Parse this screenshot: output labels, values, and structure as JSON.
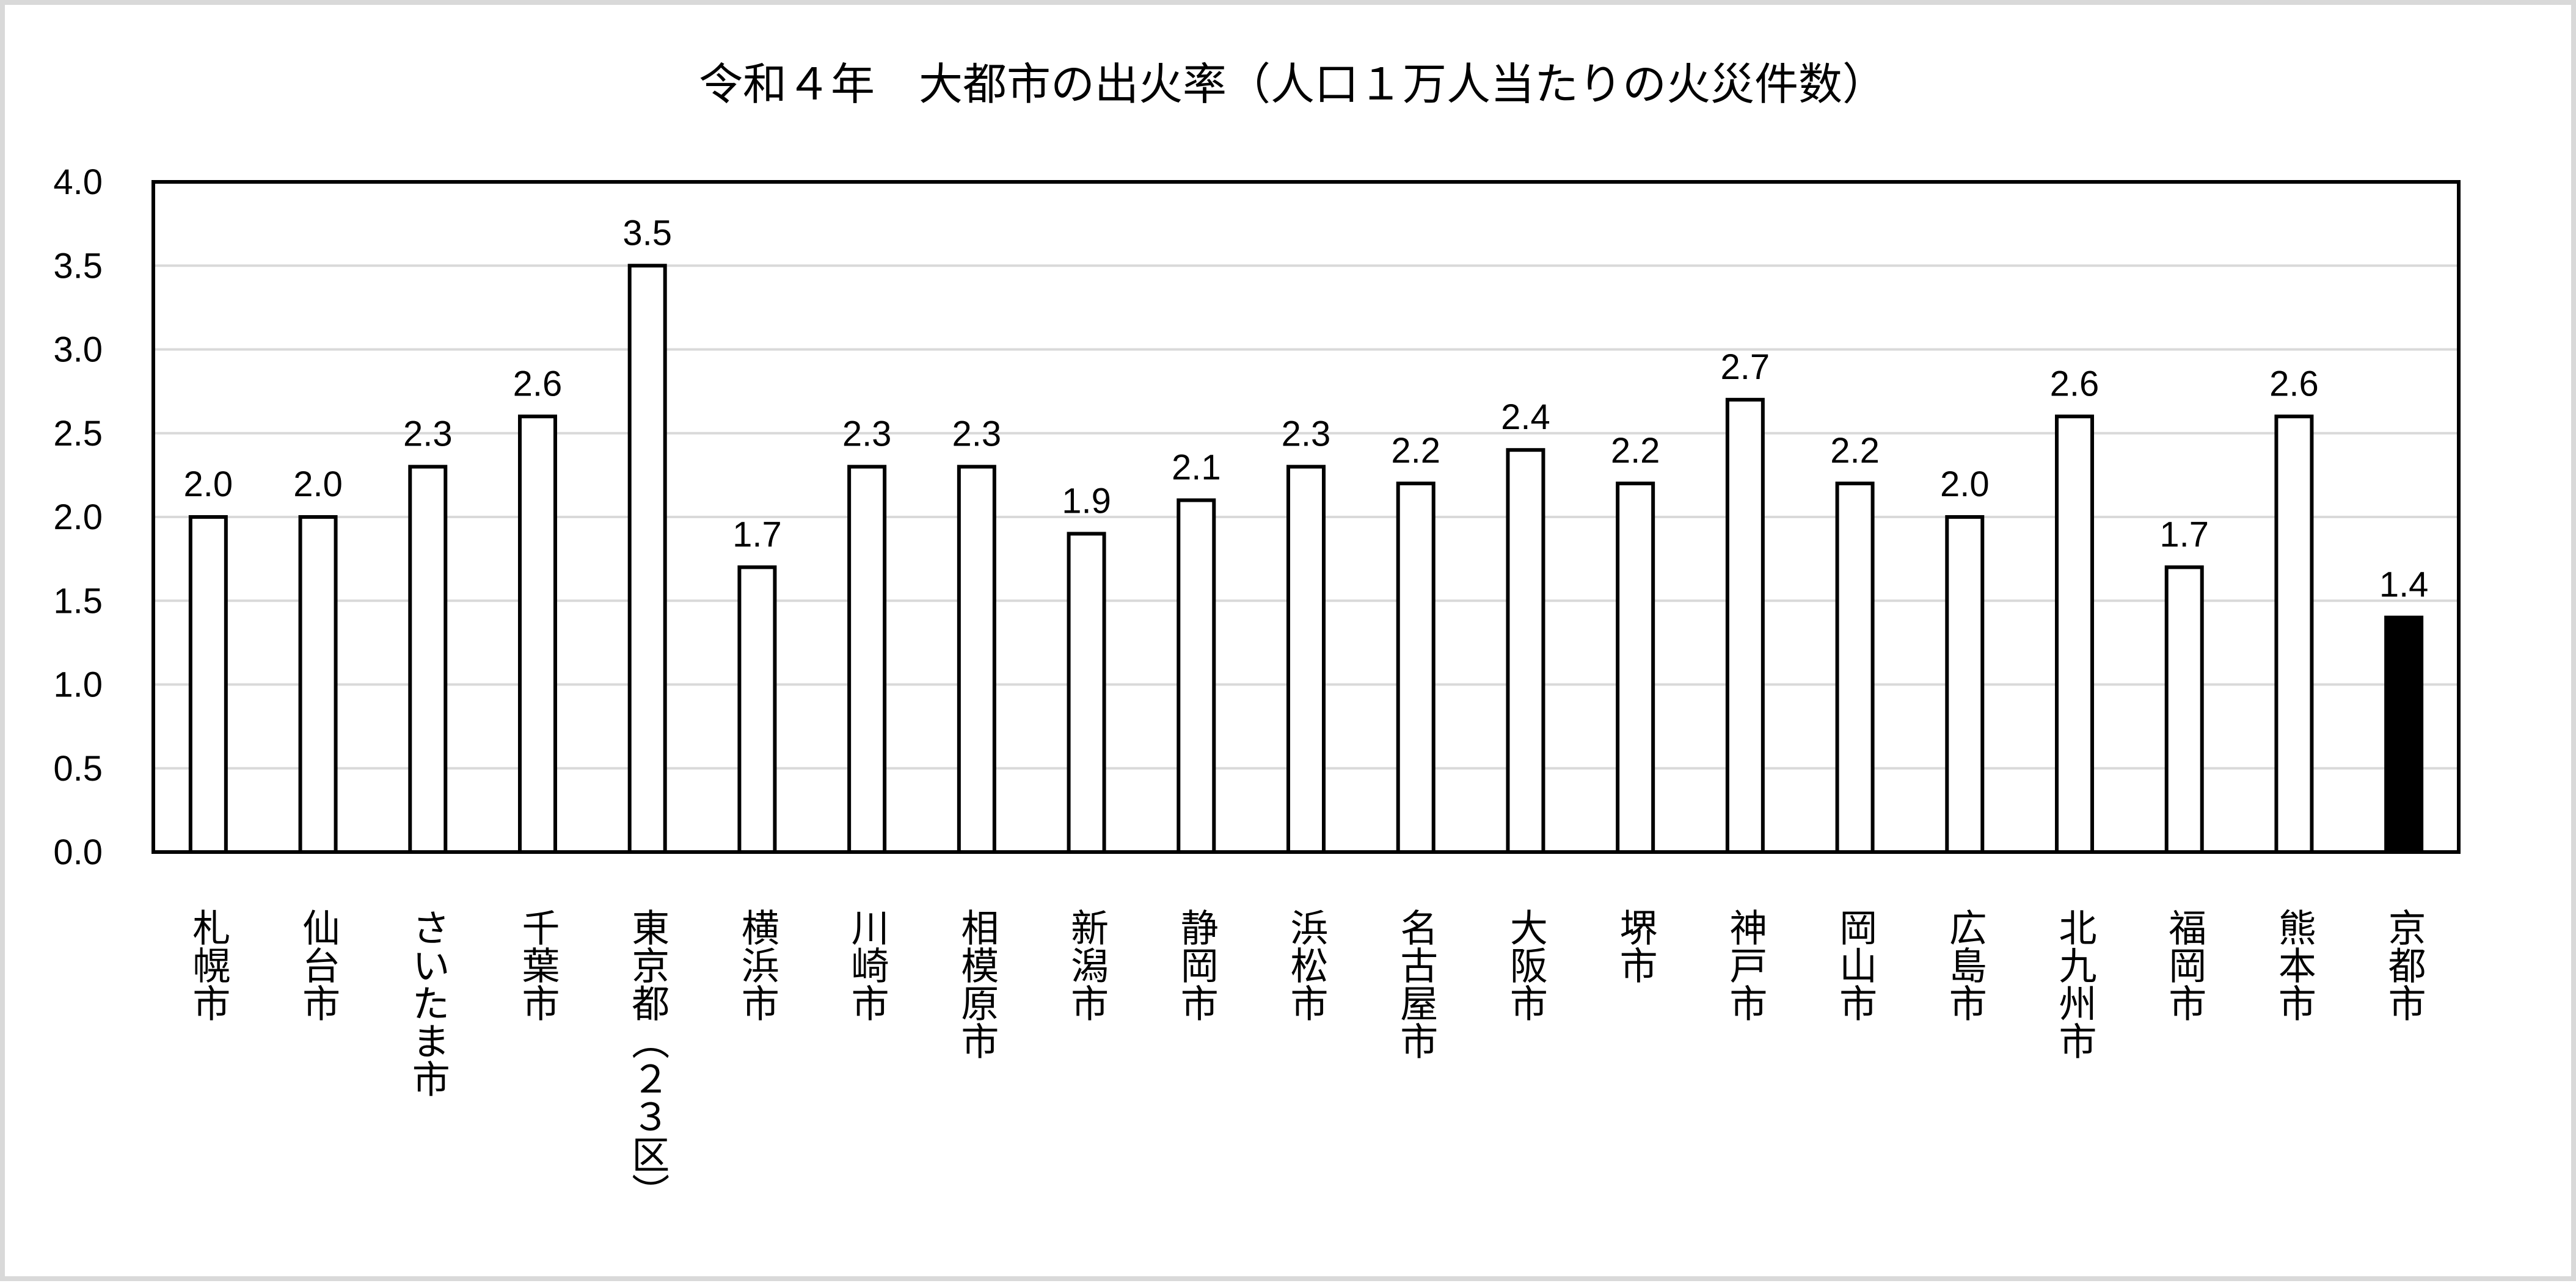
{
  "chart_data": {
    "type": "bar",
    "title": "令和４年　大都市の出火率（人口１万人当たりの火災件数）",
    "categories": [
      "札幌市",
      "仙台市",
      "さいたま市",
      "千葉市",
      "東京都（２３区）",
      "横浜市",
      "川崎市",
      "相模原市",
      "新潟市",
      "静岡市",
      "浜松市",
      "名古屋市",
      "大阪市",
      "堺市",
      "神戸市",
      "岡山市",
      "広島市",
      "北九州市",
      "福岡市",
      "熊本市",
      "京都市"
    ],
    "values": [
      2.0,
      2.0,
      2.3,
      2.6,
      3.5,
      1.7,
      2.3,
      2.3,
      1.9,
      2.1,
      2.3,
      2.2,
      2.4,
      2.2,
      2.7,
      2.2,
      2.0,
      2.6,
      1.7,
      2.6,
      1.4
    ],
    "value_labels": [
      "2.0",
      "2.0",
      "2.3",
      "2.6",
      "3.5",
      "1.7",
      "2.3",
      "2.3",
      "1.9",
      "2.1",
      "2.3",
      "2.2",
      "2.4",
      "2.2",
      "2.7",
      "2.2",
      "2.0",
      "2.6",
      "1.7",
      "2.6",
      "1.4"
    ],
    "y_ticks": [
      "0.0",
      "0.5",
      "1.0",
      "1.5",
      "2.0",
      "2.5",
      "3.0",
      "3.5",
      "4.0"
    ],
    "ylim": [
      0,
      4.0
    ],
    "grid": true,
    "legend": "none",
    "highlight_category": "京都市",
    "colors": {
      "bar_fill": "#ffffff",
      "bar_stroke": "#000000",
      "highlight_fill": "#000000",
      "grid": "#d9d9d9",
      "axis": "#000000"
    }
  }
}
